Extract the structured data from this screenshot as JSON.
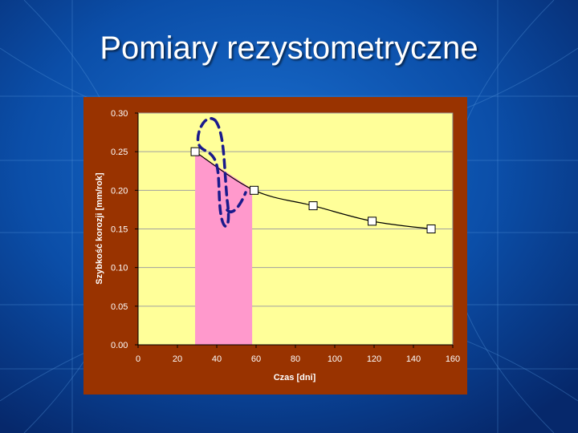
{
  "slide": {
    "title": "Pomiary rezystometryczne",
    "background_color": "#0a3d8f",
    "title_color": "#ffffff"
  },
  "chart_data": {
    "type": "line",
    "xlabel": "Czas [dni]",
    "ylabel": "Szybkość korozji [mm/rok]",
    "xlim": [
      0,
      160
    ],
    "ylim": [
      0,
      0.3
    ],
    "x_ticks": [
      "0",
      "20",
      "40",
      "60",
      "80",
      "100",
      "120",
      "140",
      "160"
    ],
    "x_tick_values": [
      0,
      20,
      40,
      60,
      80,
      100,
      120,
      140,
      160
    ],
    "y_ticks": [
      "0.00",
      "0.05",
      "0.10",
      "0.15",
      "0.20",
      "0.25",
      "0.30"
    ],
    "y_tick_values": [
      0,
      0.05,
      0.1,
      0.15,
      0.2,
      0.25,
      0.3
    ],
    "series": [
      {
        "name": "Szybkość korozji",
        "x": [
          29,
          59,
          89,
          119,
          149
        ],
        "y": [
          0.25,
          0.2,
          0.18,
          0.16,
          0.15
        ],
        "marker": "square"
      }
    ],
    "highlight_region": {
      "x_start": 29,
      "x_end": 58,
      "color": "#ff99cc"
    },
    "annotation": {
      "shape": "dashed-ellipse",
      "color": "#1a1a8c"
    },
    "colors": {
      "frame": "#993300",
      "plot_area": "#ffff99",
      "line": "#000000",
      "marker_fill": "#ffffff"
    }
  }
}
